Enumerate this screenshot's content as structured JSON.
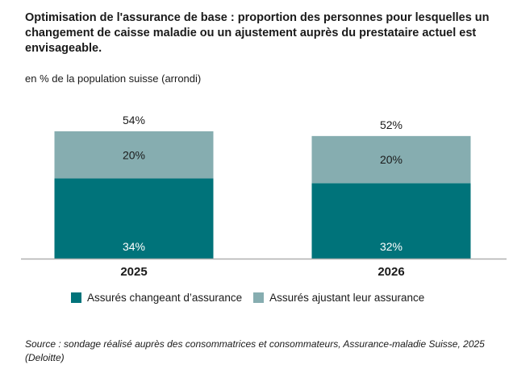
{
  "title": "Optimisation de l'assurance de base : proportion des personnes pour lesquelles un changement de caisse maladie ou un ajustement auprès du prestataire actuel est envisageable.",
  "subtitle": "en % de la population suisse (arrondi)",
  "source": "Source : sondage réalisé auprès des consommatrices et consommateurs, Assurance-maladie Suisse, 2025 (Deloitte)",
  "colors": {
    "changeant": "#00737a",
    "ajustant": "#86adb0",
    "axis": "#b0b0b0"
  },
  "chart_data": {
    "type": "bar",
    "stacked": true,
    "categories": [
      "2025",
      "2026"
    ],
    "series": [
      {
        "name": "Assurés changeant d’assurance",
        "values": [
          34,
          32
        ],
        "labels": [
          "34%",
          "32%"
        ]
      },
      {
        "name": "Assurés ajustant leur assurance",
        "values": [
          20,
          20
        ],
        "labels": [
          "20%",
          "20%"
        ]
      }
    ],
    "totals": [
      54,
      52
    ],
    "total_labels": [
      "54%",
      "52%"
    ],
    "ylim": [
      0,
      54
    ],
    "xlabel": "",
    "ylabel": "",
    "legend": "bottom"
  }
}
